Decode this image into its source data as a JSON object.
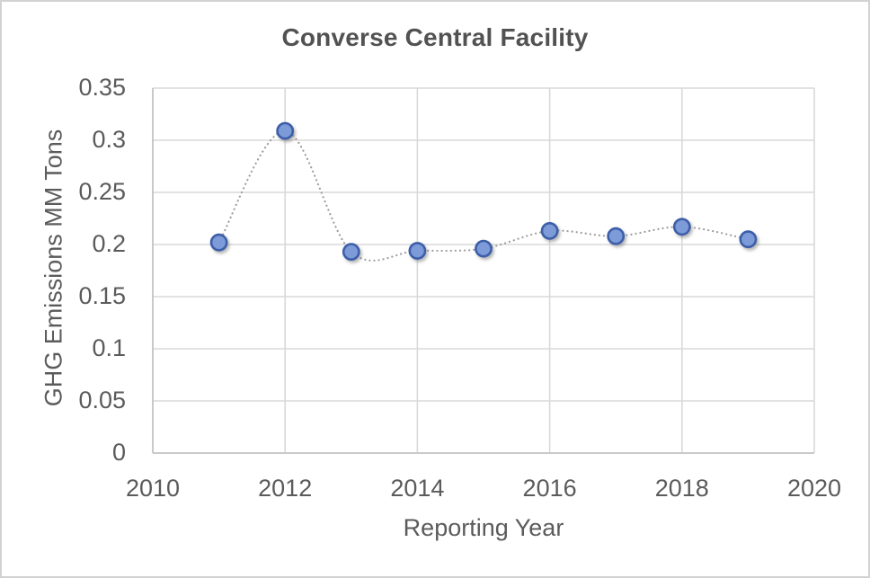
{
  "chart_data": {
    "type": "scatter",
    "line_style": "smooth-dotted",
    "title": "Converse Central Facility",
    "xlabel": "Reporting Year",
    "ylabel": "GHG Emissions MM Tons",
    "x": [
      2011,
      2012,
      2013,
      2014,
      2015,
      2016,
      2017,
      2018,
      2019
    ],
    "values": [
      0.202,
      0.309,
      0.193,
      0.194,
      0.196,
      0.213,
      0.208,
      0.217,
      0.205
    ],
    "xlim": [
      2010,
      2020
    ],
    "ylim": [
      0,
      0.35
    ],
    "xticks": [
      "2010",
      "2012",
      "2014",
      "2016",
      "2018",
      "2020"
    ],
    "yticks": [
      "0",
      "0.05",
      "0.1",
      "0.15",
      "0.2",
      "0.25",
      "0.3",
      "0.35"
    ],
    "grid": true,
    "legend": false,
    "colors": {
      "marker_fill": "#7d9bd8",
      "marker_stroke": "#3e5ea9",
      "connector_line": "#9e9e9e",
      "gridline": "#d9d9d9",
      "axis_line": "#c3c3c3",
      "title_text": "#525252",
      "axis_text": "#5b5b5b",
      "frame_border": "#d4d1d1"
    }
  }
}
